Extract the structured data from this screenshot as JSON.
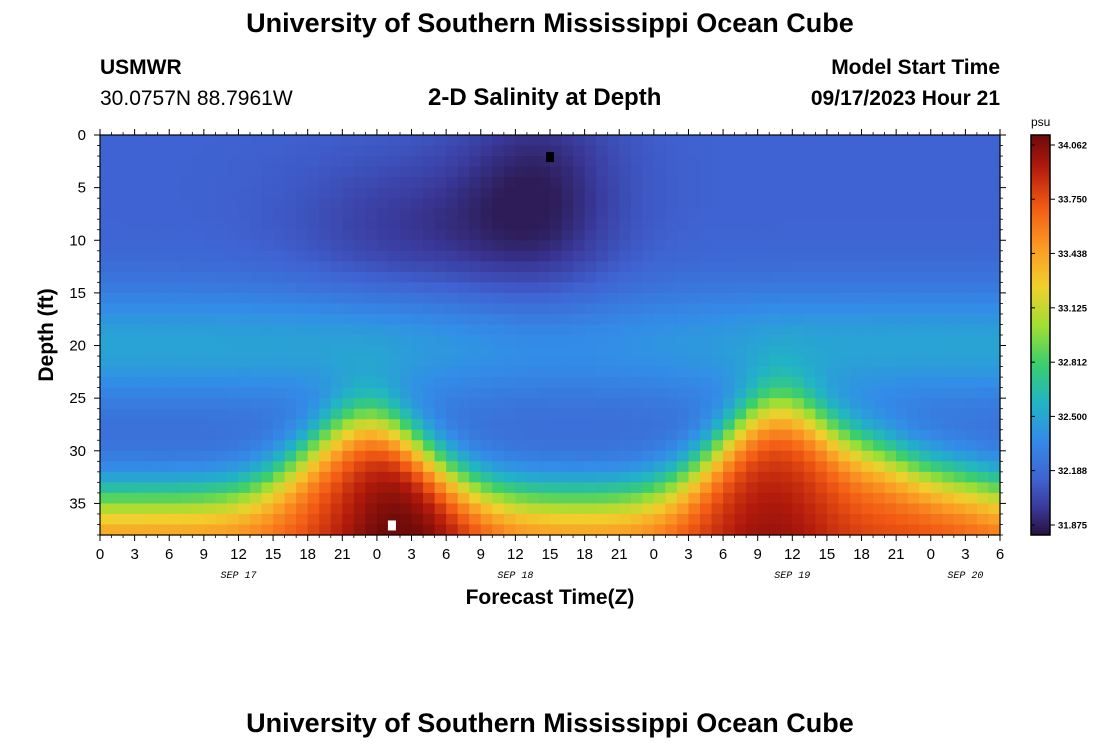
{
  "page": {
    "title": "University of Southern Mississippi Ocean Cube",
    "bottom_title": "University of Southern Mississippi Ocean Cube"
  },
  "station": {
    "name": "USMWR",
    "coords": "30.0757N  88.7961W"
  },
  "model": {
    "start_label": "Model Start Time",
    "start_value": "09/17/2023 Hour 21"
  },
  "chart_data": {
    "type": "heatmap",
    "title": "2-D Salinity at Depth",
    "xlabel": "Forecast Time(Z)",
    "ylabel": "Depth (ft)",
    "x_start_hour": 0,
    "x_end_hour": 78,
    "x_tick_step_hours": 3,
    "x_tick_labels": [
      "0",
      "3",
      "6",
      "9",
      "12",
      "15",
      "18",
      "21",
      "0",
      "3",
      "6",
      "9",
      "12",
      "15",
      "18",
      "21",
      "0",
      "3",
      "6",
      "9",
      "12",
      "15",
      "18",
      "21",
      "0",
      "3",
      "6"
    ],
    "date_labels": [
      {
        "text": "SEP 17",
        "hour": 12
      },
      {
        "text": "SEP 18",
        "hour": 36
      },
      {
        "text": "SEP 19",
        "hour": 60
      },
      {
        "text": "SEP 20",
        "hour": 75
      }
    ],
    "ylim": [
      0,
      38
    ],
    "y_ticks": [
      0,
      5,
      10,
      15,
      20,
      25,
      30,
      35
    ],
    "colorbar": {
      "unit": "psu",
      "min": 31.875,
      "max": 34.062,
      "ticks": [
        "34.062",
        "33.750",
        "33.438",
        "33.125",
        "32.812",
        "32.500",
        "32.188",
        "31.875"
      ]
    },
    "markers": [
      {
        "kind": "min",
        "hour": 39,
        "depth": 2,
        "color": "#000000"
      },
      {
        "kind": "max",
        "hour": 25.3,
        "depth": 37,
        "color": "#ffffff"
      }
    ]
  }
}
